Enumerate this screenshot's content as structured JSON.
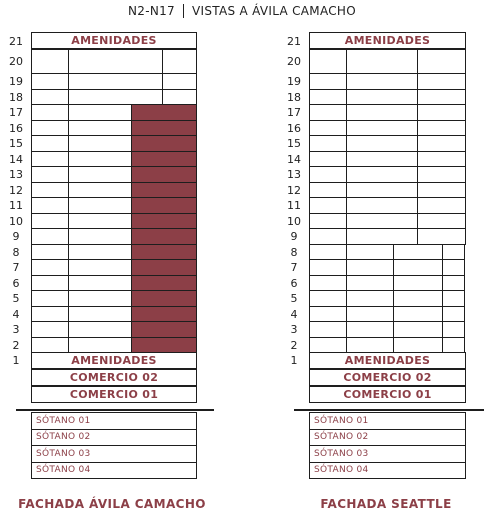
{
  "title": {
    "left": "N2-N17",
    "right": "VISTAS A ÁVILA CAMACHO"
  },
  "left_facade": {
    "caption": "FACHADA ÁVILA CAMACHO",
    "amenidades_top": "AMENIDADES",
    "amenidades_bottom": "AMENIDADES",
    "comercio_02": "COMERCIO 02",
    "comercio_01": "COMERCIO 01",
    "highlighted_floors": [
      2,
      17
    ]
  },
  "right_facade": {
    "caption": "FACHADA SEATTLE",
    "amenidades_top": "AMENIDADES",
    "amenidades_bottom": "AMENIDADES",
    "comercio_02": "COMERCIO 02",
    "comercio_01": "COMERCIO 01"
  },
  "basements": [
    "SÓTANO 01",
    "SÓTANO 02",
    "SÓTANO 03",
    "SÓTANO 04"
  ],
  "floor_numbers": [
    21,
    20,
    19,
    18,
    17,
    16,
    15,
    14,
    13,
    12,
    11,
    10,
    9,
    8,
    7,
    6,
    5,
    4,
    3,
    2,
    1
  ],
  "colors": {
    "accent": "#8c3f47",
    "line": "#1e1e1e"
  }
}
